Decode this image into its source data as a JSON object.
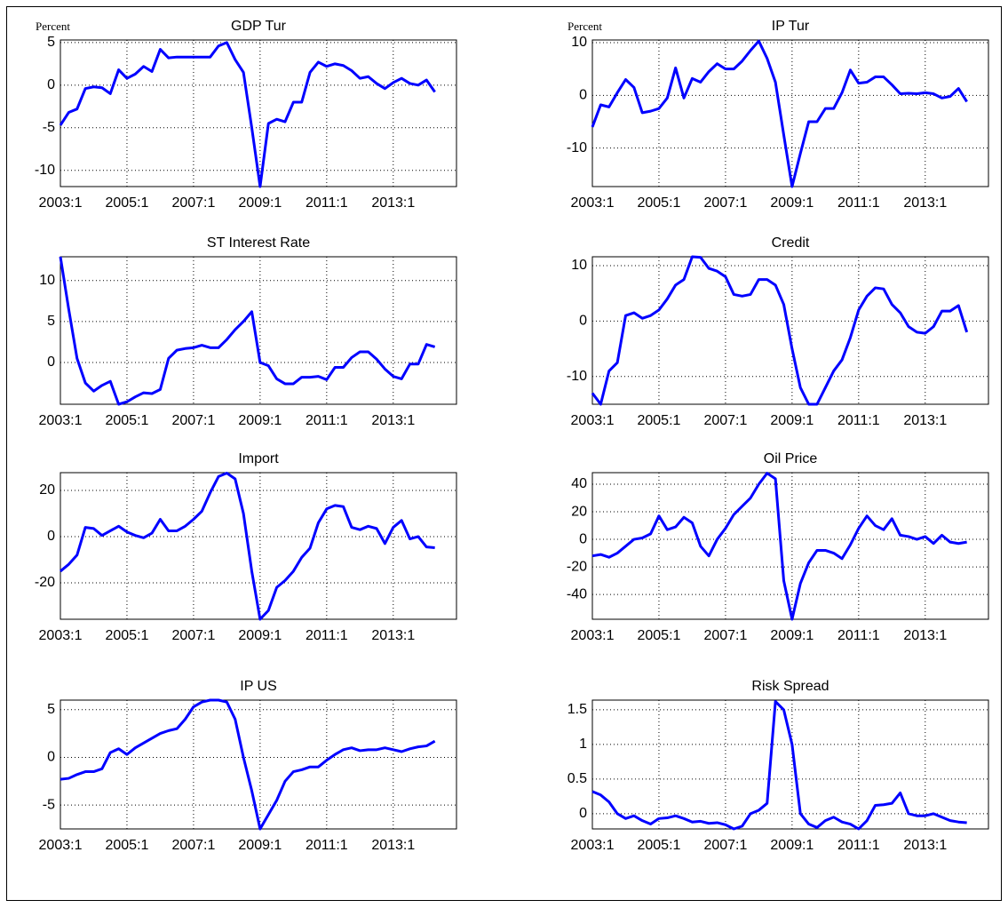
{
  "chart_data": [
    {
      "type": "line",
      "title": "GDP Tur",
      "y_label": "Percent",
      "color": "#0000ff",
      "grid": true,
      "x": [
        2003,
        2003.25,
        2003.5,
        2003.75,
        2004,
        2004.25,
        2004.5,
        2004.75,
        2005,
        2005.25,
        2005.5,
        2005.75,
        2006,
        2006.25,
        2006.5,
        2006.75,
        2007,
        2007.25,
        2007.5,
        2007.75,
        2008,
        2008.25,
        2008.5,
        2008.75,
        2009,
        2009.25,
        2009.5,
        2009.75,
        2010,
        2010.25,
        2010.5,
        2010.75,
        2011,
        2011.25,
        2011.5,
        2011.75,
        2012,
        2012.25,
        2012.5,
        2012.75,
        2013,
        2013.25,
        2013.5,
        2013.75,
        2014,
        2014.25
      ],
      "values": [
        -4.7,
        -3.2,
        -2.8,
        -0.4,
        -0.2,
        -0.3,
        -1.0,
        1.8,
        0.8,
        1.3,
        2.2,
        1.6,
        4.2,
        3.2,
        3.3,
        3.3,
        3.3,
        3.3,
        3.3,
        4.6,
        5.0,
        3.0,
        1.5,
        -5.0,
        -11.9,
        -4.5,
        -4.0,
        -4.3,
        -2.0,
        -2.0,
        1.5,
        2.7,
        2.2,
        2.5,
        2.3,
        1.7,
        0.8,
        1.0,
        0.2,
        -0.4,
        0.3,
        0.8,
        0.2,
        0.0,
        0.6,
        -0.8
      ],
      "xlim": [
        2003,
        2014.9
      ],
      "ylim": [
        -11.9,
        5.3
      ],
      "yticks": [
        -10,
        -5,
        0,
        5
      ],
      "xticks": [
        {
          "value": 2003,
          "label": "2003:1"
        },
        {
          "value": 2005,
          "label": "2005:1"
        },
        {
          "value": 2007,
          "label": "2007:1"
        },
        {
          "value": 2009,
          "label": "2009:1"
        },
        {
          "value": 2011,
          "label": "2011:1"
        },
        {
          "value": 2013,
          "label": "2013:1"
        }
      ]
    },
    {
      "type": "line",
      "title": "IP Tur",
      "y_label": "Percent",
      "color": "#0000ff",
      "grid": true,
      "x": [
        2003,
        2003.25,
        2003.5,
        2003.75,
        2004,
        2004.25,
        2004.5,
        2004.75,
        2005,
        2005.25,
        2005.5,
        2005.75,
        2006,
        2006.25,
        2006.5,
        2006.75,
        2007,
        2007.25,
        2007.5,
        2007.75,
        2008,
        2008.25,
        2008.5,
        2008.75,
        2009,
        2009.25,
        2009.5,
        2009.75,
        2010,
        2010.25,
        2010.5,
        2010.75,
        2011,
        2011.25,
        2011.5,
        2011.75,
        2012,
        2012.25,
        2012.5,
        2012.75,
        2013,
        2013.25,
        2013.5,
        2013.75,
        2014,
        2014.25
      ],
      "values": [
        -6,
        -1.8,
        -2.2,
        0.5,
        3,
        1.5,
        -3.3,
        -3,
        -2.5,
        -0.5,
        5.2,
        -0.5,
        3.2,
        2.5,
        4.5,
        6,
        5,
        5,
        6.5,
        8.5,
        10.3,
        7,
        2.5,
        -7.5,
        -17.3,
        -11,
        -5,
        -5,
        -2.5,
        -2.5,
        0.5,
        4.8,
        2.3,
        2.5,
        3.5,
        3.5,
        2,
        0.3,
        0.4,
        0.3,
        0.5,
        0.3,
        -0.5,
        -0.2,
        1.3,
        -1.2
      ],
      "xlim": [
        2003,
        2014.9
      ],
      "ylim": [
        -17.3,
        10.5
      ],
      "yticks": [
        -10,
        0,
        10
      ],
      "xticks": [
        {
          "value": 2003,
          "label": "2003:1"
        },
        {
          "value": 2005,
          "label": "2005:1"
        },
        {
          "value": 2007,
          "label": "2007:1"
        },
        {
          "value": 2009,
          "label": "2009:1"
        },
        {
          "value": 2011,
          "label": "2011:1"
        },
        {
          "value": 2013,
          "label": "2013:1"
        }
      ]
    },
    {
      "type": "line",
      "title": "ST Interest Rate",
      "color": "#0000ff",
      "grid": true,
      "x": [
        2003,
        2003.25,
        2003.5,
        2003.75,
        2004,
        2004.25,
        2004.5,
        2004.75,
        2005,
        2005.25,
        2005.5,
        2005.75,
        2006,
        2006.25,
        2006.5,
        2006.75,
        2007,
        2007.25,
        2007.5,
        2007.75,
        2008,
        2008.25,
        2008.5,
        2008.75,
        2009,
        2009.25,
        2009.5,
        2009.75,
        2010,
        2010.25,
        2010.5,
        2010.75,
        2011,
        2011.25,
        2011.5,
        2011.75,
        2012,
        2012.25,
        2012.5,
        2012.75,
        2013,
        2013.25,
        2013.5,
        2013.75,
        2014,
        2014.25
      ],
      "values": [
        12.9,
        6.5,
        0.5,
        -2.5,
        -3.5,
        -2.8,
        -2.3,
        -5.1,
        -4.8,
        -4.2,
        -3.7,
        -3.8,
        -3.3,
        0.5,
        1.5,
        1.7,
        1.8,
        2.1,
        1.8,
        1.8,
        2.8,
        4.0,
        5.0,
        6.2,
        0,
        -0.4,
        -2.0,
        -2.6,
        -2.6,
        -1.8,
        -1.8,
        -1.7,
        -2.1,
        -0.6,
        -0.6,
        0.6,
        1.3,
        1.3,
        0.4,
        -0.8,
        -1.7,
        -2.0,
        -0.2,
        -0.2,
        2.2,
        1.9
      ],
      "xlim": [
        2003,
        2014.9
      ],
      "ylim": [
        -5.1,
        12.9
      ],
      "yticks": [
        0,
        5,
        10
      ],
      "xticks": [
        {
          "value": 2003,
          "label": "2003:1"
        },
        {
          "value": 2005,
          "label": "2005:1"
        },
        {
          "value": 2007,
          "label": "2007:1"
        },
        {
          "value": 2009,
          "label": "2009:1"
        },
        {
          "value": 2011,
          "label": "2011:1"
        },
        {
          "value": 2013,
          "label": "2013:1"
        }
      ]
    },
    {
      "type": "line",
      "title": "Credit",
      "color": "#0000ff",
      "grid": true,
      "x": [
        2003,
        2003.25,
        2003.5,
        2003.75,
        2004,
        2004.25,
        2004.5,
        2004.75,
        2005,
        2005.25,
        2005.5,
        2005.75,
        2006,
        2006.25,
        2006.5,
        2006.75,
        2007,
        2007.25,
        2007.5,
        2007.75,
        2008,
        2008.25,
        2008.5,
        2008.75,
        2009,
        2009.25,
        2009.5,
        2009.75,
        2010,
        2010.25,
        2010.5,
        2010.75,
        2011,
        2011.25,
        2011.5,
        2011.75,
        2012,
        2012.25,
        2012.5,
        2012.75,
        2013,
        2013.25,
        2013.5,
        2013.75,
        2014,
        2014.25
      ],
      "values": [
        -13,
        -15,
        -9,
        -7.5,
        1,
        1.5,
        0.5,
        1,
        2,
        4,
        6.5,
        7.5,
        11.6,
        11.5,
        9.5,
        9,
        8,
        4.8,
        4.5,
        4.8,
        7.5,
        7.5,
        6.5,
        3,
        -5,
        -12,
        -15,
        -15,
        -12,
        -9,
        -7,
        -3,
        2,
        4.5,
        6,
        5.8,
        3,
        1.5,
        -1,
        -2,
        -2.2,
        -1,
        1.8,
        1.8,
        2.8,
        -2
      ],
      "xlim": [
        2003,
        2014.9
      ],
      "ylim": [
        -15,
        11.6
      ],
      "yticks": [
        -10,
        0,
        10
      ],
      "xticks": [
        {
          "value": 2003,
          "label": "2003:1"
        },
        {
          "value": 2005,
          "label": "2005:1"
        },
        {
          "value": 2007,
          "label": "2007:1"
        },
        {
          "value": 2009,
          "label": "2009:1"
        },
        {
          "value": 2011,
          "label": "2011:1"
        },
        {
          "value": 2013,
          "label": "2013:1"
        }
      ]
    },
    {
      "type": "line",
      "title": "Import",
      "color": "#0000ff",
      "grid": true,
      "x": [
        2003,
        2003.25,
        2003.5,
        2003.75,
        2004,
        2004.25,
        2004.5,
        2004.75,
        2005,
        2005.25,
        2005.5,
        2005.75,
        2006,
        2006.25,
        2006.5,
        2006.75,
        2007,
        2007.25,
        2007.5,
        2007.75,
        2008,
        2008.25,
        2008.5,
        2008.75,
        2009,
        2009.25,
        2009.5,
        2009.75,
        2010,
        2010.25,
        2010.5,
        2010.75,
        2011,
        2011.25,
        2011.5,
        2011.75,
        2012,
        2012.25,
        2012.5,
        2012.75,
        2013,
        2013.25,
        2013.5,
        2013.75,
        2014,
        2014.25
      ],
      "values": [
        -15,
        -12,
        -8,
        4,
        3.5,
        0.5,
        2.5,
        4.5,
        2,
        0.5,
        -0.5,
        1.5,
        7.5,
        2.5,
        2.5,
        4.5,
        7.5,
        11,
        19,
        26,
        27.5,
        25,
        10,
        -15,
        -35.8,
        -32,
        -22,
        -19,
        -15,
        -9,
        -5,
        6,
        12,
        13.5,
        13,
        4,
        3,
        4.5,
        3.5,
        -3,
        4,
        7,
        -1,
        0,
        -4.5,
        -4.8
      ],
      "xlim": [
        2003,
        2014.9
      ],
      "ylim": [
        -35.8,
        27.7
      ],
      "yticks": [
        -20,
        0,
        20
      ],
      "xticks": [
        {
          "value": 2003,
          "label": "2003:1"
        },
        {
          "value": 2005,
          "label": "2005:1"
        },
        {
          "value": 2007,
          "label": "2007:1"
        },
        {
          "value": 2009,
          "label": "2009:1"
        },
        {
          "value": 2011,
          "label": "2011:1"
        },
        {
          "value": 2013,
          "label": "2013:1"
        }
      ]
    },
    {
      "type": "line",
      "title": "Oil Price",
      "color": "#0000ff",
      "grid": true,
      "x": [
        2003,
        2003.25,
        2003.5,
        2003.75,
        2004,
        2004.25,
        2004.5,
        2004.75,
        2005,
        2005.25,
        2005.5,
        2005.75,
        2006,
        2006.25,
        2006.5,
        2006.75,
        2007,
        2007.25,
        2007.5,
        2007.75,
        2008,
        2008.25,
        2008.5,
        2008.75,
        2009,
        2009.25,
        2009.5,
        2009.75,
        2010,
        2010.25,
        2010.5,
        2010.75,
        2011,
        2011.25,
        2011.5,
        2011.75,
        2012,
        2012.25,
        2012.5,
        2012.75,
        2013,
        2013.25,
        2013.5,
        2013.75,
        2014,
        2014.25
      ],
      "values": [
        -12,
        -11,
        -13,
        -10,
        -5,
        0,
        1,
        4,
        17,
        7,
        9,
        16,
        12,
        -5,
        -12,
        0,
        8,
        18,
        24,
        30,
        40,
        48,
        44,
        -30,
        -58,
        -32,
        -17,
        -8,
        -8,
        -10,
        -14,
        -4,
        8,
        17,
        10,
        7,
        15,
        3,
        2,
        0,
        2,
        -3,
        3,
        -2,
        -3,
        -2
      ],
      "xlim": [
        2003,
        2014.9
      ],
      "ylim": [
        -58,
        48.4
      ],
      "yticks": [
        -40,
        -20,
        0,
        20,
        40
      ],
      "xticks": [
        {
          "value": 2003,
          "label": "2003:1"
        },
        {
          "value": 2005,
          "label": "2005:1"
        },
        {
          "value": 2007,
          "label": "2007:1"
        },
        {
          "value": 2009,
          "label": "2009:1"
        },
        {
          "value": 2011,
          "label": "2011:1"
        },
        {
          "value": 2013,
          "label": "2013:1"
        }
      ]
    },
    {
      "type": "line",
      "title": "IP US",
      "color": "#0000ff",
      "grid": true,
      "x": [
        2003,
        2003.25,
        2003.5,
        2003.75,
        2004,
        2004.25,
        2004.5,
        2004.75,
        2005,
        2005.25,
        2005.5,
        2005.75,
        2006,
        2006.25,
        2006.5,
        2006.75,
        2007,
        2007.25,
        2007.5,
        2007.75,
        2008,
        2008.25,
        2008.5,
        2008.75,
        2009,
        2009.25,
        2009.5,
        2009.75,
        2010,
        2010.25,
        2010.5,
        2010.75,
        2011,
        2011.25,
        2011.5,
        2011.75,
        2012,
        2012.25,
        2012.5,
        2012.75,
        2013,
        2013.25,
        2013.5,
        2013.75,
        2014,
        2014.25
      ],
      "values": [
        -2.3,
        -2.2,
        -1.8,
        -1.5,
        -1.5,
        -1.2,
        0.5,
        0.9,
        0.3,
        1,
        1.5,
        2,
        2.5,
        2.8,
        3,
        4,
        5.3,
        5.8,
        6,
        6,
        5.8,
        4,
        0,
        -3.5,
        -7.5,
        -6,
        -4.5,
        -2.5,
        -1.5,
        -1.3,
        -1,
        -1,
        -0.3,
        0.3,
        0.8,
        1,
        0.7,
        0.8,
        0.8,
        1.0,
        0.8,
        0.6,
        0.9,
        1.1,
        1.2,
        1.7
      ],
      "xlim": [
        2003,
        2014.9
      ],
      "ylim": [
        -7.5,
        6
      ],
      "yticks": [
        -5,
        0,
        5
      ],
      "xticks": [
        {
          "value": 2003,
          "label": "2003:1"
        },
        {
          "value": 2005,
          "label": "2005:1"
        },
        {
          "value": 2007,
          "label": "2007:1"
        },
        {
          "value": 2009,
          "label": "2009:1"
        },
        {
          "value": 2011,
          "label": "2011:1"
        },
        {
          "value": 2013,
          "label": "2013:1"
        }
      ]
    },
    {
      "type": "line",
      "title": "Risk Spread",
      "color": "#0000ff",
      "grid": true,
      "x": [
        2003,
        2003.25,
        2003.5,
        2003.75,
        2004,
        2004.25,
        2004.5,
        2004.75,
        2005,
        2005.25,
        2005.5,
        2005.75,
        2006,
        2006.25,
        2006.5,
        2006.75,
        2007,
        2007.25,
        2007.5,
        2007.75,
        2008,
        2008.25,
        2008.5,
        2008.75,
        2009,
        2009.25,
        2009.5,
        2009.75,
        2010,
        2010.25,
        2010.5,
        2010.75,
        2011,
        2011.25,
        2011.5,
        2011.75,
        2012,
        2012.25,
        2012.5,
        2012.75,
        2013,
        2013.25,
        2013.5,
        2013.75,
        2014,
        2014.25
      ],
      "values": [
        0.32,
        0.27,
        0.17,
        0.0,
        -0.07,
        -0.03,
        -0.1,
        -0.15,
        -0.07,
        -0.06,
        -0.03,
        -0.07,
        -0.12,
        -0.11,
        -0.14,
        -0.13,
        -0.16,
        -0.22,
        -0.18,
        0.0,
        0.05,
        0.15,
        1.62,
        1.5,
        1.0,
        0.0,
        -0.15,
        -0.2,
        -0.1,
        -0.05,
        -0.12,
        -0.15,
        -0.22,
        -0.1,
        0.12,
        0.13,
        0.15,
        0.3,
        0.0,
        -0.03,
        -0.03,
        0.0,
        -0.05,
        -0.1,
        -0.12,
        -0.13
      ],
      "xlim": [
        2003,
        2014.9
      ],
      "ylim": [
        -0.22,
        1.64
      ],
      "yticks": [
        0,
        0.5,
        1,
        1.5
      ],
      "xticks": [
        {
          "value": 2003,
          "label": "2003:1"
        },
        {
          "value": 2005,
          "label": "2005:1"
        },
        {
          "value": 2007,
          "label": "2007:1"
        },
        {
          "value": 2009,
          "label": "2009:1"
        },
        {
          "value": 2011,
          "label": "2011:1"
        },
        {
          "value": 2013,
          "label": "2013:1"
        }
      ]
    }
  ]
}
